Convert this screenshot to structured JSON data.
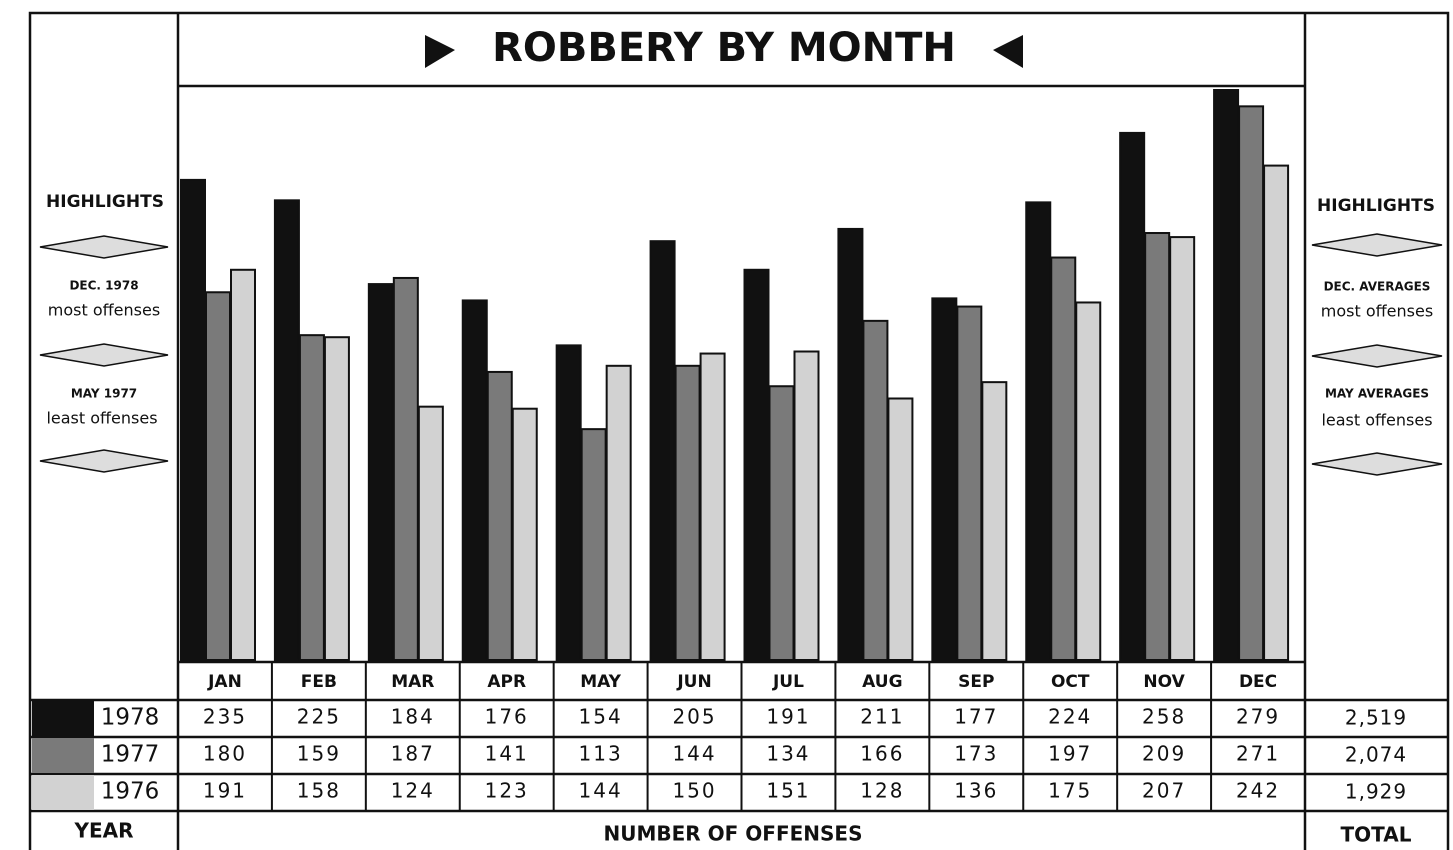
{
  "chart_data": {
    "type": "bar",
    "title": "ROBBERY BY MONTH",
    "categories": [
      "JAN",
      "FEB",
      "MAR",
      "APR",
      "MAY",
      "JUN",
      "JUL",
      "AUG",
      "SEP",
      "OCT",
      "NOV",
      "DEC"
    ],
    "series": [
      {
        "name": "1978",
        "color": "#111111",
        "values": [
          235,
          225,
          184,
          176,
          154,
          205,
          191,
          211,
          177,
          224,
          258,
          279
        ],
        "total": "2,519"
      },
      {
        "name": "1977",
        "color": "#7a7a7a",
        "values": [
          180,
          159,
          187,
          141,
          113,
          144,
          134,
          166,
          173,
          197,
          209,
          271
        ],
        "total": "2,074"
      },
      {
        "name": "1976",
        "color": "#d2d2d2",
        "values": [
          191,
          158,
          124,
          123,
          144,
          150,
          151,
          128,
          136,
          175,
          207,
          242
        ],
        "total": "1,929"
      }
    ],
    "left_highlights": {
      "heading": "HIGHLIGHTS",
      "items": [
        {
          "date": "DEC. 1978",
          "note": "most offenses"
        },
        {
          "date": "MAY 1977",
          "note": "least offenses"
        }
      ]
    },
    "right_highlights": {
      "heading": "HIGHLIGHTS",
      "items": [
        {
          "date": "DEC. AVERAGES",
          "note": "most offenses"
        },
        {
          "date": "MAY AVERAGES",
          "note": "least offenses"
        }
      ]
    },
    "year_label": "YEAR",
    "x_label": "NUMBER OF OFFENSES",
    "total_label": "TOTAL"
  }
}
